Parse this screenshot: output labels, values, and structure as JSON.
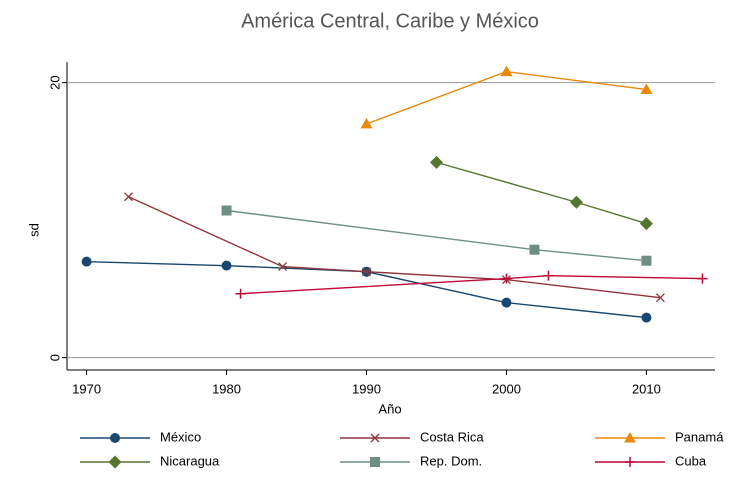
{
  "chart_data": {
    "type": "line",
    "title": "América Central, Caribe y México",
    "xlabel": "Año",
    "ylabel": "sd",
    "xlim": [
      1968.6,
      2014.9
    ],
    "xticks": [
      1970,
      1980,
      1990,
      2000,
      2010
    ],
    "ylim": [
      -0.9,
      21.5
    ],
    "yticks": [
      0,
      20
    ],
    "grid": true,
    "legend": "bottom",
    "series": [
      {
        "name": "México",
        "color": "#1a476f",
        "marker": "circle",
        "x": [
          1970,
          1980,
          1990,
          2000,
          2010
        ],
        "values": [
          6.98,
          6.69,
          6.25,
          4.0,
          2.91
        ]
      },
      {
        "name": "Costa Rica",
        "color": "#90353b",
        "marker": "x",
        "x": [
          1973,
          1984,
          1990,
          2000,
          2011
        ],
        "values": [
          11.7,
          6.62,
          6.25,
          5.67,
          4.36
        ]
      },
      {
        "name": "Panamá",
        "color": "#e8890c",
        "marker": "triangle",
        "x": [
          1990,
          2000,
          2010
        ],
        "values": [
          17.0,
          20.8,
          19.5
        ]
      },
      {
        "name": "Nicaragua",
        "color": "#55752f",
        "marker": "diamond",
        "x": [
          1995,
          2005,
          2010
        ],
        "values": [
          14.2,
          11.3,
          9.75
        ]
      },
      {
        "name": "Rep. Dom.",
        "color": "#6e8e84",
        "marker": "square",
        "x": [
          1980,
          2002,
          2010
        ],
        "values": [
          10.7,
          7.85,
          7.05
        ]
      },
      {
        "name": "Cuba",
        "color": "#c10534",
        "marker": "plus",
        "x": [
          1981,
          2000,
          2003,
          2014
        ],
        "values": [
          4.65,
          5.75,
          5.96,
          5.75
        ]
      }
    ]
  }
}
